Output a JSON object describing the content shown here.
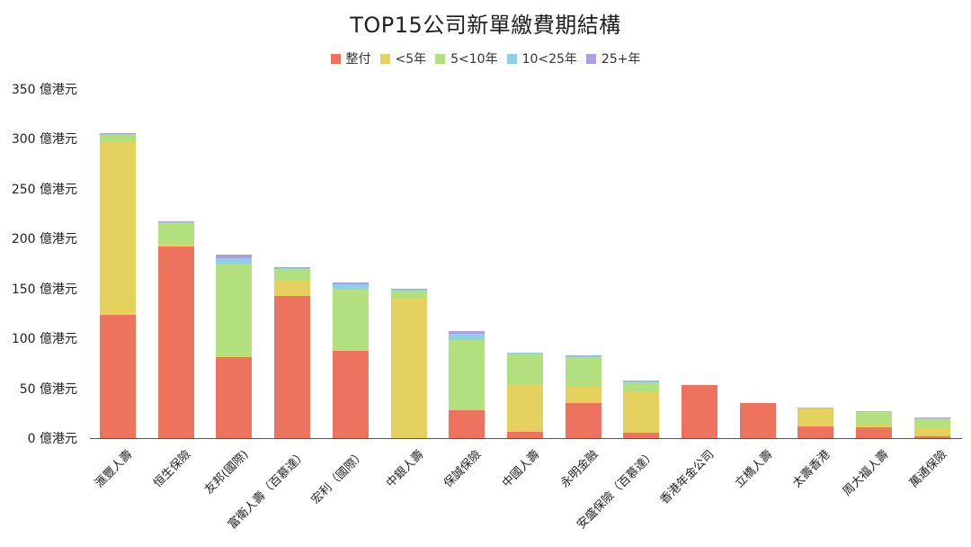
{
  "chart_data": {
    "type": "bar",
    "stacked": true,
    "title": "TOP15公司新單繳費期結構",
    "xlabel": "",
    "ylabel": "",
    "ylim": [
      0,
      350
    ],
    "yticks": [
      0,
      50,
      100,
      150,
      200,
      250,
      300,
      350
    ],
    "ytick_labels": [
      "0 億港元",
      "50 億港元",
      "100 億港元",
      "150 億港元",
      "200 億港元",
      "250 億港元",
      "300 億港元",
      "350 億港元"
    ],
    "grid": false,
    "legend_position": "top",
    "categories": [
      "滙豐人壽",
      "恒生保險",
      "友邦(國際)",
      "富衛人壽（百慕達）",
      "宏利（國際）",
      "中銀人壽",
      "保誠保險",
      "中國人壽",
      "永明金融",
      "安盛保險（百慕達）",
      "香港年金公司",
      "立橋人壽",
      "太壽香港",
      "周大福人壽",
      "萬通保險"
    ],
    "series": [
      {
        "name": "整付",
        "color": "#EE735E",
        "values": [
          124,
          192,
          81,
          142.5,
          87.5,
          0,
          28,
          6.5,
          35,
          5.5,
          53,
          35,
          11.5,
          11,
          2
        ]
      },
      {
        "name": "<5年",
        "color": "#E5D25E",
        "values": [
          173,
          3,
          1,
          15.5,
          0.5,
          141,
          0,
          46.5,
          16.5,
          41.5,
          0,
          0,
          18,
          2.5,
          8
        ]
      },
      {
        "name": "5<10年",
        "color": "#B3E07E",
        "values": [
          7,
          20.5,
          92,
          12,
          62,
          7,
          70,
          32,
          29.5,
          9,
          0.3,
          0.3,
          0.5,
          12.5,
          9.5
        ]
      },
      {
        "name": "10<25年",
        "color": "#8FD0E6",
        "values": [
          1.2,
          1,
          6,
          0.8,
          4,
          1.2,
          7,
          0.8,
          1.5,
          1.2,
          0.2,
          0.2,
          0.5,
          1,
          0.8
        ]
      },
      {
        "name": "25+年",
        "color": "#AE9FE0",
        "values": [
          0.3,
          0.5,
          4,
          0.5,
          2,
          0.3,
          2,
          0.2,
          0.5,
          0.3,
          0,
          0,
          0.3,
          0.5,
          0.2
        ]
      }
    ]
  },
  "title": "TOP15公司新單繳費期結構",
  "legend": [
    {
      "label": "整付",
      "color": "#EE735E"
    },
    {
      "label": "<5年",
      "color": "#E5D25E"
    },
    {
      "label": "5<10年",
      "color": "#B3E07E"
    },
    {
      "label": "10<25年",
      "color": "#8FD0E6"
    },
    {
      "label": "25+年",
      "color": "#AE9FE0"
    }
  ]
}
